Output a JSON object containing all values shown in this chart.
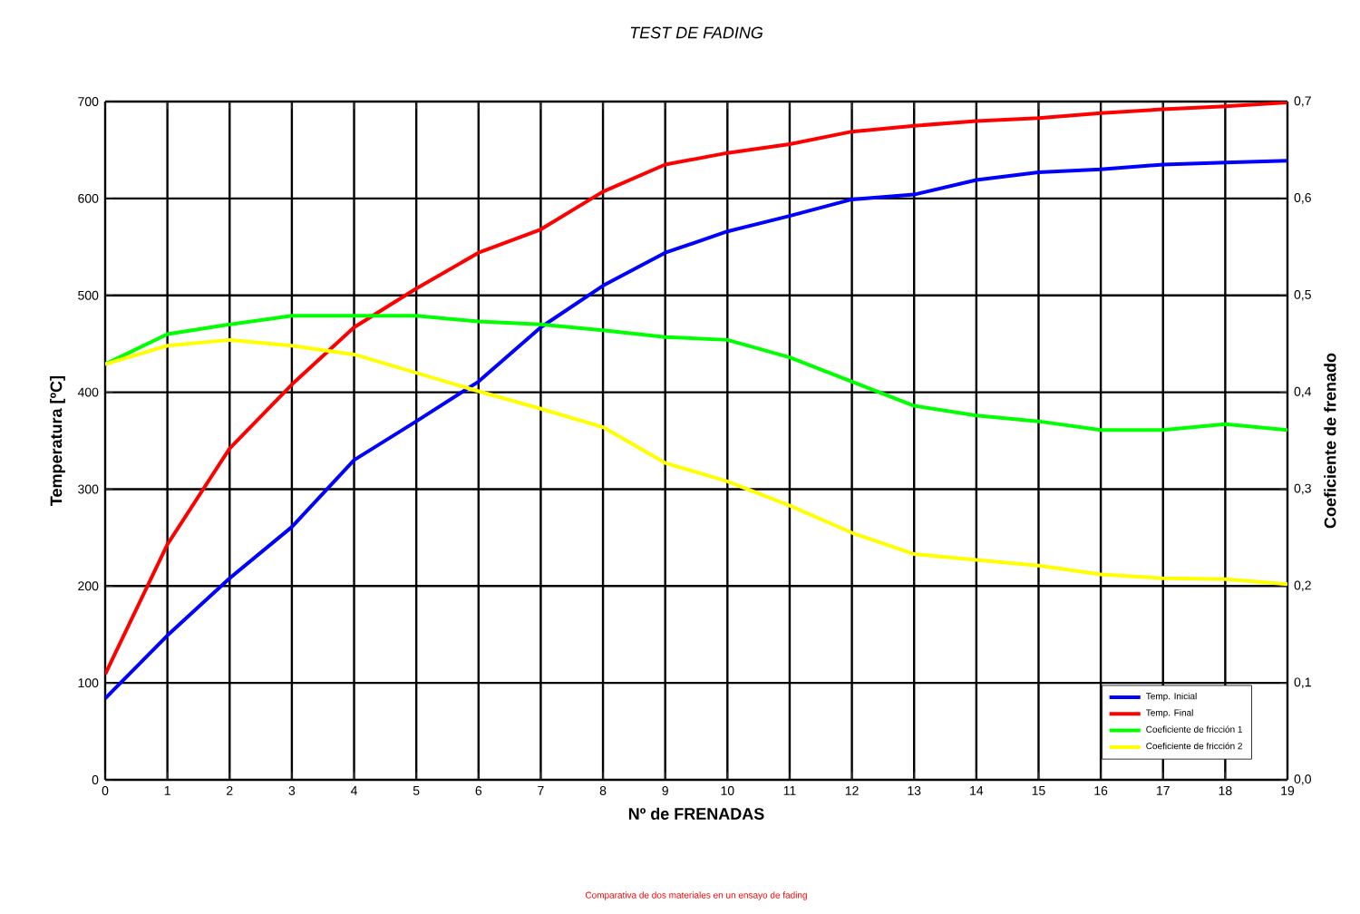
{
  "chart_data": {
    "type": "line",
    "title": "TEST DE FADING",
    "xlabel": "Nº de FRENADAS",
    "ylabel": "Temperatura [ºC]",
    "y2label": "Coeficiente de frenado",
    "annotations": [
      "Comparativa de dos materiales en un ensayo de fading"
    ],
    "x": [
      0,
      1,
      2,
      3,
      4,
      5,
      6,
      7,
      8,
      9,
      10,
      11,
      12,
      13,
      14,
      15,
      16,
      17,
      18,
      19
    ],
    "series": [
      {
        "name": "Temp. Inicial",
        "color": "#0000ff",
        "values": [
          84,
          149,
          208,
          261,
          330,
          370,
          411,
          467,
          510,
          544,
          566,
          582,
          599,
          604,
          619,
          627,
          630,
          635,
          637,
          639
        ]
      },
      {
        "name": "Temp. Final",
        "color": "#ff0000",
        "values": [
          109,
          243,
          342,
          408,
          467,
          507,
          544,
          568,
          607,
          635,
          647,
          656,
          669,
          675,
          680,
          683,
          688,
          692,
          695,
          699
        ]
      },
      {
        "name": "Coeficiente de fricción 1",
        "color": "#00ff00",
        "axis": "y2",
        "values": [
          0.429,
          0.46,
          0.47,
          0.479,
          0.479,
          0.479,
          0.473,
          0.47,
          0.464,
          0.457,
          0.454,
          0.436,
          0.411,
          0.386,
          0.376,
          0.37,
          0.361,
          0.361,
          0.367,
          0.361
        ]
      },
      {
        "name": "Coeficiente de fricción 2",
        "color": "#ffff00",
        "axis": "y2",
        "values": [
          0.429,
          0.448,
          0.454,
          0.448,
          0.439,
          0.42,
          0.401,
          0.383,
          0.364,
          0.327,
          0.308,
          0.283,
          0.255,
          0.233,
          0.227,
          0.221,
          0.212,
          0.208,
          0.207,
          0.202
        ]
      }
    ],
    "xlim": [
      0,
      19
    ],
    "xticks": [
      0,
      1,
      2,
      3,
      4,
      5,
      6,
      7,
      8,
      9,
      10,
      11,
      12,
      13,
      14,
      15,
      16,
      17,
      18,
      19
    ],
    "ylim": [
      0,
      700
    ],
    "yticks": [
      0,
      100,
      200,
      300,
      400,
      500,
      600,
      700
    ],
    "y2lim": [
      0,
      0.7
    ],
    "y2ticks": [
      {
        "value": 0,
        "label": "0,0"
      },
      {
        "value": 0.1,
        "label": "0,1"
      },
      {
        "value": 0.2,
        "label": "0,2"
      },
      {
        "value": 0.3,
        "label": "0,3"
      },
      {
        "value": 0.4,
        "label": "0,4"
      },
      {
        "value": 0.5,
        "label": "0,5"
      },
      {
        "value": 0.6,
        "label": "0,6"
      },
      {
        "value": 0.7,
        "label": "0,7"
      }
    ],
    "grid": true,
    "legend": "bottom right",
    "line_style": "solid",
    "marker": "none"
  }
}
